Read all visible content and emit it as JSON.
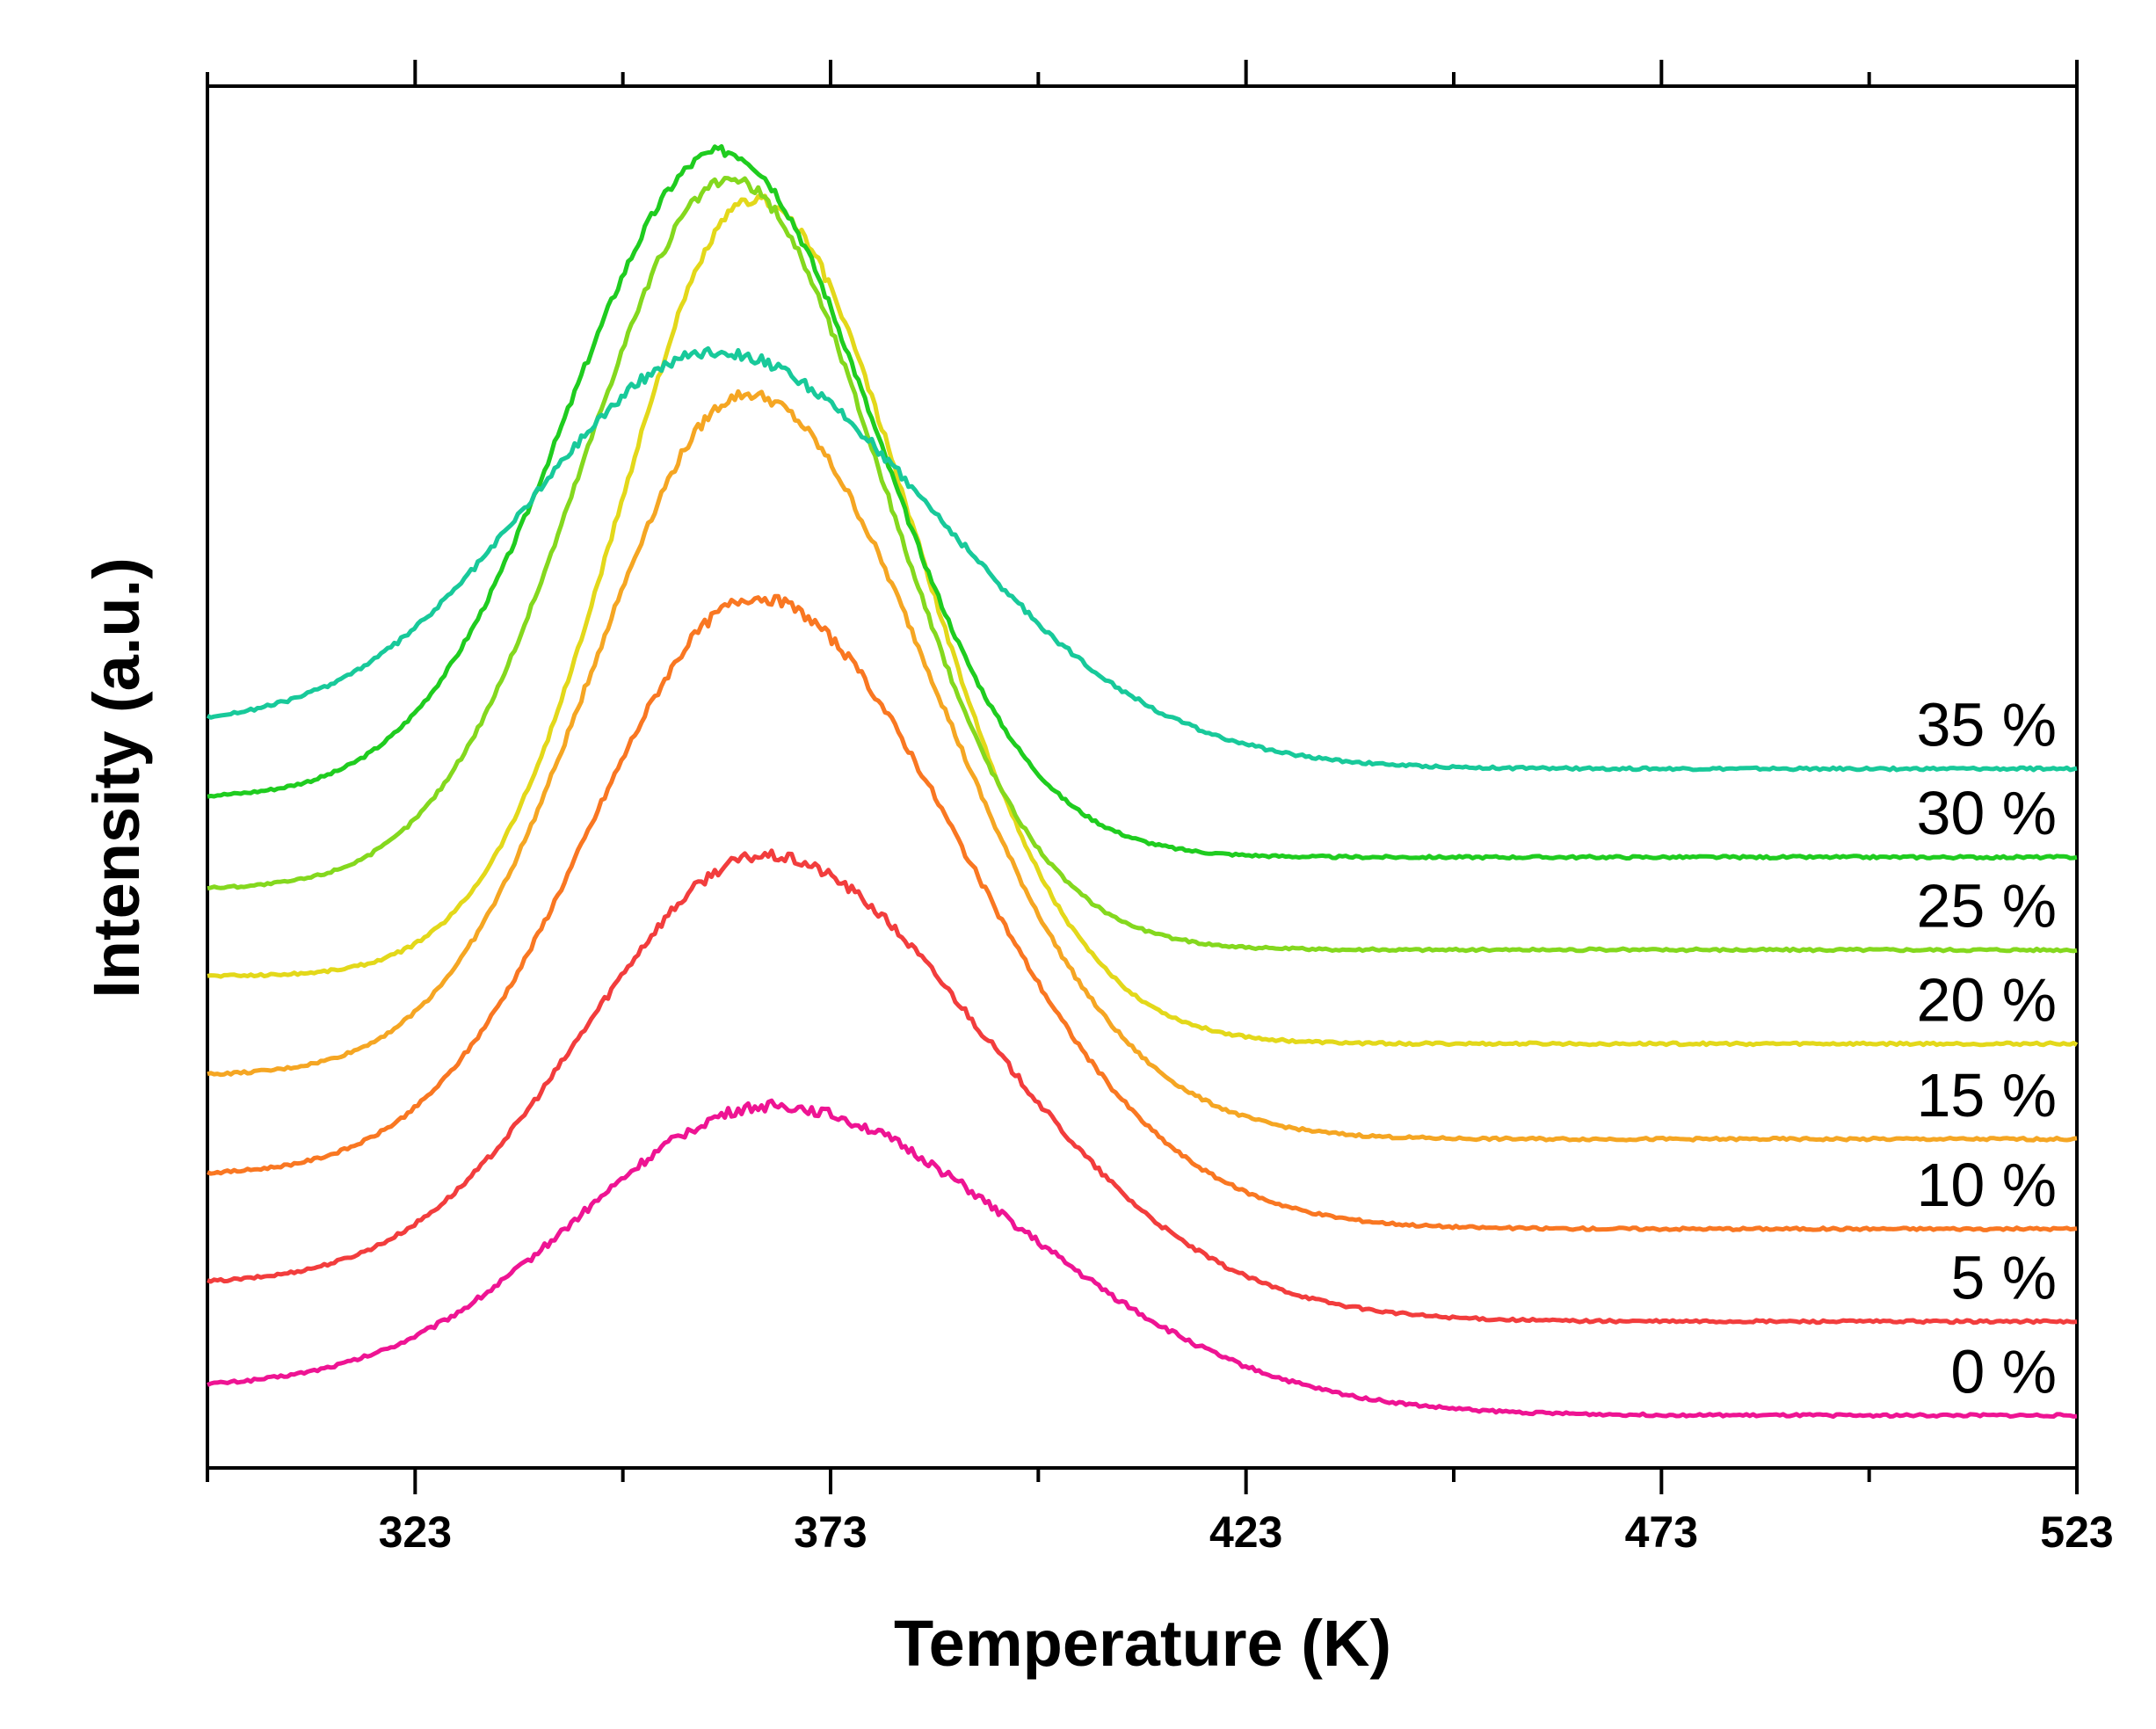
{
  "chart_data": {
    "type": "line",
    "title": "",
    "xlabel": "Temperature (K)",
    "ylabel": "Intensity (a.u.)",
    "xlim": [
      298,
      523
    ],
    "ylim": [
      0,
      1
    ],
    "xticks": [
      323,
      373,
      423,
      473,
      523
    ],
    "xtick_labels": [
      "323",
      "373",
      "423",
      "473",
      "523"
    ],
    "x_minor_ticks": [
      298,
      348,
      398,
      448,
      498
    ],
    "yticks_shown": false,
    "grid": false,
    "legend": "inline labels at right end of each curve",
    "series": [
      {
        "name": "0 %",
        "label": "0 %",
        "color": "#ee1493",
        "base": 0.058,
        "end": 0.038,
        "peak": 0.262,
        "center": 366,
        "w_left": 33,
        "w_right": 42
      },
      {
        "name": "5 %",
        "label": "5 %",
        "color": "#f23d3d",
        "base": 0.133,
        "end": 0.106,
        "peak": 0.443,
        "center": 365,
        "w_left": 30,
        "w_right": 38
      },
      {
        "name": "10 %",
        "label": "10 %",
        "color": "#f97722",
        "base": 0.212,
        "end": 0.173,
        "peak": 0.63,
        "center": 364,
        "w_left": 28,
        "w_right": 35
      },
      {
        "name": "15 %",
        "label": "15 %",
        "color": "#f5a623",
        "base": 0.284,
        "end": 0.238,
        "peak": 0.777,
        "center": 363,
        "w_left": 26,
        "w_right": 32
      },
      {
        "name": "20 %",
        "label": "20 %",
        "color": "#e3d81a",
        "base": 0.356,
        "end": 0.307,
        "peak": 0.918,
        "center": 364,
        "w_left": 23,
        "w_right": 27
      },
      {
        "name": "25 %",
        "label": "25 %",
        "color": "#84d81e",
        "base": 0.419,
        "end": 0.375,
        "peak": 0.932,
        "center": 361,
        "w_left": 25,
        "w_right": 26
      },
      {
        "name": "30 %",
        "label": "30 %",
        "color": "#1fcc1f",
        "base": 0.485,
        "end": 0.442,
        "peak": 0.953,
        "center": 360,
        "w_left": 26,
        "w_right": 26
      },
      {
        "name": "35 %",
        "label": "35 %",
        "color": "#18c99a",
        "base": 0.538,
        "end": 0.506,
        "peak": 0.808,
        "center": 359,
        "w_left": 31,
        "w_right": 38
      }
    ]
  }
}
